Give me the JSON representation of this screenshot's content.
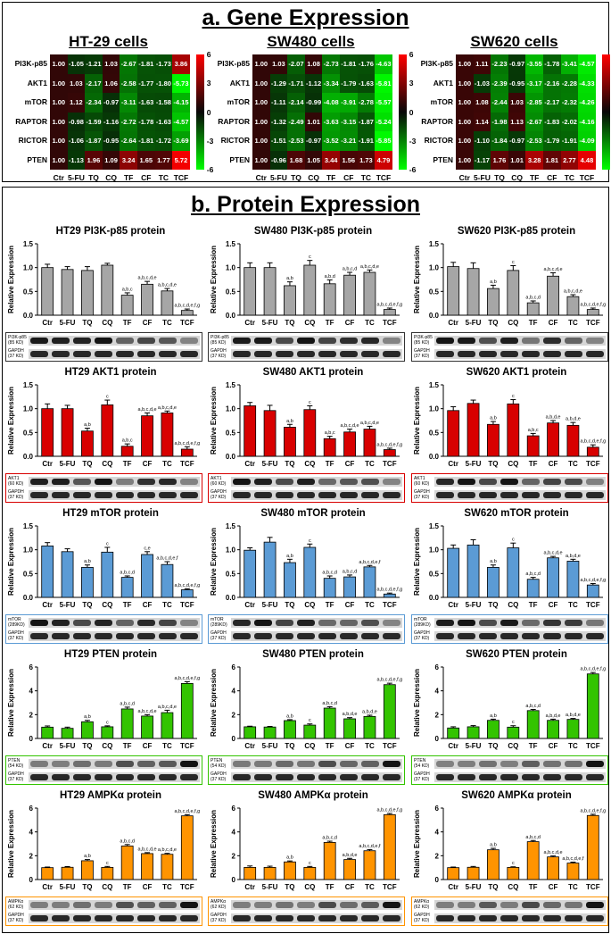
{
  "panel_a": {
    "title": "a. Gene Expression",
    "columns": [
      "Ctr",
      "5-FU",
      "TQ",
      "CQ",
      "TF",
      "CF",
      "TC",
      "TCF"
    ],
    "rows": [
      "PI3K-p85",
      "AKT1",
      "mTOR",
      "RAPTOR",
      "RICTOR",
      "PTEN"
    ],
    "heatmaps": [
      {
        "title": "HT-29 cells",
        "scale_ticks": [
          "6",
          "3",
          "0",
          "-3",
          "-6"
        ],
        "range": [
          -6,
          6
        ],
        "values": [
          [
            "1.00",
            "-1.05",
            "-1.21",
            "1.03",
            "-2.67",
            "-1.81",
            "-1.73",
            "3.86"
          ],
          [
            "1.00",
            "1.03",
            "-2.17",
            "1.06",
            "-2.58",
            "-1.77",
            "-1.80",
            "-5.73"
          ],
          [
            "1.00",
            "1.12",
            "-2.34",
            "-0.97",
            "-3.11",
            "-1.63",
            "-1.58",
            "-4.15"
          ],
          [
            "1.00",
            "-0.98",
            "-1.59",
            "-1.16",
            "-2.72",
            "-1.78",
            "-1.63",
            "-4.57"
          ],
          [
            "1.00",
            "-1.06",
            "-1.87",
            "-0.95",
            "-2.64",
            "-1.81",
            "-1.72",
            "-3.69"
          ],
          [
            "1.00",
            "-1.13",
            "1.96",
            "1.09",
            "3.24",
            "1.65",
            "1.77",
            "5.72"
          ]
        ]
      },
      {
        "title": "SW480 cells",
        "scale_ticks": [
          "6",
          "3",
          "0",
          "-3",
          "-6"
        ],
        "range": [
          -6,
          6
        ],
        "values": [
          [
            "1.00",
            "1.03",
            "-2.07",
            "1.08",
            "-2.73",
            "-1.81",
            "-1.76",
            "-4.63"
          ],
          [
            "1.00",
            "-1.29",
            "-1.71",
            "-1.12",
            "-3.34",
            "-1.79",
            "-1.63",
            "-5.81"
          ],
          [
            "1.00",
            "-1.11",
            "-2.14",
            "-0.99",
            "-4.08",
            "-3.91",
            "-2.78",
            "-5.57"
          ],
          [
            "1.00",
            "-1.32",
            "-2.49",
            "1.01",
            "-3.63",
            "-3.15",
            "-1.87",
            "-5.24"
          ],
          [
            "1.00",
            "-1.51",
            "-2.53",
            "-0.97",
            "-3.52",
            "-3.21",
            "-1.91",
            "-5.85"
          ],
          [
            "1.00",
            "-0.96",
            "1.68",
            "1.05",
            "3.44",
            "1.56",
            "1.73",
            "4.79"
          ]
        ]
      },
      {
        "title": "SW620 cells",
        "scale_ticks": [
          "5.0",
          "2.5",
          "0",
          "-2.5",
          "-5.0"
        ],
        "range": [
          -5,
          5
        ],
        "values": [
          [
            "1.00",
            "1.11",
            "-2.23",
            "-0.97",
            "-3.55",
            "-1.78",
            "-3.41",
            "-4.57"
          ],
          [
            "1.00",
            "-1.03",
            "-2.39",
            "-0.95",
            "-3.17",
            "-2.16",
            "-2.28",
            "-4.33"
          ],
          [
            "1.00",
            "1.08",
            "-2.44",
            "1.03",
            "-2.85",
            "-2.17",
            "-2.32",
            "-4.26"
          ],
          [
            "1.00",
            "1.14",
            "-1.98",
            "1.13",
            "-2.67",
            "-1.83",
            "-2.02",
            "-4.16"
          ],
          [
            "1.00",
            "-1.10",
            "-1.84",
            "-0.97",
            "-2.53",
            "-1.79",
            "-1.91",
            "-4.09"
          ],
          [
            "1.00",
            "-1.17",
            "1.76",
            "1.01",
            "3.28",
            "1.81",
            "2.77",
            "4.48"
          ]
        ]
      }
    ]
  },
  "panel_b": {
    "title": "b. Protein Expression",
    "ylabel": "Relative Expression",
    "categories": [
      "Ctr",
      "5-FU",
      "TQ",
      "CQ",
      "TF",
      "CF",
      "TC",
      "TCF"
    ],
    "gapdh_label": "GAPDH",
    "gapdh_kd": "(37 KD)"
  },
  "colors": {
    "gray": "#a6a6a6",
    "red": "#d80000",
    "blue": "#5b9bd5",
    "green": "#33c400",
    "orange": "#ff9400"
  },
  "chart_data": [
    {
      "type": "bar",
      "title": "HT29 PI3K-p85 protein",
      "ylabel": "Relative Expression",
      "ylim": [
        0,
        1.5
      ],
      "yticks": [
        "0.0",
        "0.5",
        "1.0",
        "1.5"
      ],
      "color": "gray",
      "blot": "PI3K-p85",
      "blot_kd": "(85 KD)",
      "categories": [
        "Ctr",
        "5-FU",
        "TQ",
        "CQ",
        "TF",
        "CF",
        "TC",
        "TCF"
      ],
      "values": [
        1.0,
        0.96,
        0.94,
        1.05,
        0.42,
        0.65,
        0.51,
        0.1
      ],
      "errors": [
        0.07,
        0.06,
        0.08,
        0.04,
        0.05,
        0.06,
        0.05,
        0.03
      ],
      "annotations": [
        "",
        "",
        "",
        "",
        "a,b,c",
        "a,b,c,d,e",
        "a,b,c,d,e",
        "a,b,c,d,e,f,g"
      ]
    },
    {
      "type": "bar",
      "title": "SW480 PI3K-p85 protein",
      "ylabel": "Relative Expression",
      "ylim": [
        0,
        1.5
      ],
      "yticks": [
        "0.0",
        "0.5",
        "1.0",
        "1.5"
      ],
      "color": "gray",
      "blot": "PI3K-p85",
      "blot_kd": "(85 KD)",
      "categories": [
        "Ctr",
        "5-FU",
        "TQ",
        "CQ",
        "TF",
        "CF",
        "TC",
        "TCF"
      ],
      "values": [
        1.0,
        1.0,
        0.62,
        1.05,
        0.66,
        0.84,
        0.9,
        0.12
      ],
      "errors": [
        0.1,
        0.1,
        0.08,
        0.1,
        0.08,
        0.06,
        0.05,
        0.03
      ],
      "annotations": [
        "",
        "",
        "a,b",
        "c",
        "a,b,d",
        "a,b,c,d",
        "a,b,c,d,e",
        "a,b,c,d,e,f,g"
      ]
    },
    {
      "type": "bar",
      "title": "SW620 PI3K-p85 protein",
      "ylabel": "Relative Expression",
      "ylim": [
        0,
        1.5
      ],
      "yticks": [
        "0.0",
        "0.5",
        "1.0",
        "1.5"
      ],
      "color": "gray",
      "blot": "PI3K-p85",
      "blot_kd": "(85 KD)",
      "categories": [
        "Ctr",
        "5-FU",
        "TQ",
        "CQ",
        "TF",
        "CF",
        "TC",
        "TCF"
      ],
      "values": [
        1.02,
        0.98,
        0.56,
        0.94,
        0.26,
        0.82,
        0.39,
        0.12
      ],
      "errors": [
        0.09,
        0.12,
        0.07,
        0.1,
        0.04,
        0.07,
        0.04,
        0.03
      ],
      "annotations": [
        "",
        "",
        "a,b",
        "c",
        "a,b,c,d",
        "a,b,c,d,e",
        "a,b,c,d,e",
        "a,b,c,d,e,f,g"
      ]
    },
    {
      "type": "bar",
      "title": "HT29 AKT1 protein",
      "ylabel": "Relative Expression",
      "ylim": [
        0,
        1.5
      ],
      "yticks": [
        "0.0",
        "0.5",
        "1.0",
        "1.5"
      ],
      "color": "red",
      "blot": "AKT1",
      "blot_kd": "(60 KD)",
      "categories": [
        "Ctr",
        "5-FU",
        "TQ",
        "CQ",
        "TF",
        "CF",
        "TC",
        "TCF"
      ],
      "values": [
        1.0,
        1.0,
        0.53,
        1.08,
        0.21,
        0.85,
        0.91,
        0.15
      ],
      "errors": [
        0.1,
        0.07,
        0.06,
        0.1,
        0.05,
        0.06,
        0.04,
        0.05
      ],
      "annotations": [
        "",
        "",
        "a,b",
        "c",
        "a,b,c",
        "a,b,c,d,e",
        "a,b,c,d,e",
        "a,b,c,d,e,f,g"
      ]
    },
    {
      "type": "bar",
      "title": "SW480 AKT1 protein",
      "ylabel": "Relative Expression",
      "ylim": [
        0,
        1.5
      ],
      "yticks": [
        "0.0",
        "0.5",
        "1.0",
        "1.5"
      ],
      "color": "red",
      "blot": "AKT1",
      "blot_kd": "(60 KD)",
      "categories": [
        "Ctr",
        "5-FU",
        "TQ",
        "CQ",
        "TF",
        "CF",
        "TC",
        "TCF"
      ],
      "values": [
        1.06,
        0.96,
        0.61,
        0.98,
        0.37,
        0.51,
        0.57,
        0.14
      ],
      "errors": [
        0.07,
        0.11,
        0.06,
        0.08,
        0.05,
        0.06,
        0.06,
        0.03
      ],
      "annotations": [
        "",
        "",
        "a,b",
        "c",
        "a,b,c",
        "a,b,c,d,e",
        "a,b,c,d,e",
        "a,b,c,d,e,f,g"
      ]
    },
    {
      "type": "bar",
      "title": "SW620 AKT1 protein",
      "ylabel": "Relative Expression",
      "ylim": [
        0,
        1.5
      ],
      "yticks": [
        "0.0",
        "0.5",
        "1.0",
        "1.5"
      ],
      "color": "red",
      "blot": "AKT1",
      "blot_kd": "(60 KD)",
      "categories": [
        "Ctr",
        "5-FU",
        "TQ",
        "CQ",
        "TF",
        "CF",
        "TC",
        "TCF"
      ],
      "values": [
        0.96,
        1.11,
        0.67,
        1.1,
        0.43,
        0.7,
        0.65,
        0.19
      ],
      "errors": [
        0.08,
        0.07,
        0.06,
        0.09,
        0.05,
        0.05,
        0.06,
        0.05
      ],
      "annotations": [
        "",
        "",
        "a,b",
        "c",
        "a,b,c",
        "a,b,d,e",
        "a,b,d,e",
        "a,b,c,d,e,f,g"
      ]
    },
    {
      "type": "bar",
      "title": "HT29 mTOR protein",
      "ylabel": "Relative Expression",
      "ylim": [
        0,
        1.5
      ],
      "yticks": [
        "0.0",
        "0.5",
        "1.0",
        "1.5"
      ],
      "color": "blue",
      "blot": "mTOR",
      "blot_kd": "(289KD)",
      "categories": [
        "Ctr",
        "5-FU",
        "TQ",
        "CQ",
        "TF",
        "CF",
        "TC",
        "TCF"
      ],
      "values": [
        1.08,
        0.96,
        0.63,
        0.95,
        0.42,
        0.9,
        0.69,
        0.16
      ],
      "errors": [
        0.07,
        0.06,
        0.05,
        0.1,
        0.03,
        0.06,
        0.06,
        0.02
      ],
      "annotations": [
        "",
        "",
        "a,b",
        "c",
        "a,b,c,d",
        "c,e",
        "a,b,c,d,e,f",
        "a,b,c,d,e,f,g"
      ]
    },
    {
      "type": "bar",
      "title": "SW480 mTOR protein",
      "ylabel": "Relative Expression",
      "ylim": [
        0,
        1.5
      ],
      "yticks": [
        "0.0",
        "0.5",
        "1.0",
        "1.5"
      ],
      "color": "blue",
      "blot": "mTOR",
      "blot_kd": "(289KD)",
      "categories": [
        "Ctr",
        "5-FU",
        "TQ",
        "CQ",
        "TF",
        "CF",
        "TC",
        "TCF"
      ],
      "values": [
        0.99,
        1.16,
        0.73,
        1.05,
        0.4,
        0.43,
        0.64,
        0.07
      ],
      "errors": [
        0.05,
        0.1,
        0.07,
        0.07,
        0.05,
        0.04,
        0.03,
        0.02
      ],
      "annotations": [
        "",
        "",
        "a,b",
        "c",
        "a,b,c,d",
        "a,b,c,d",
        "a,b,c,d,e,f",
        "a,b,c,d,e,f,g"
      ]
    },
    {
      "type": "bar",
      "title": "SW620 mTOR protein",
      "ylabel": "Relative Expression",
      "ylim": [
        0,
        1.5
      ],
      "yticks": [
        "0.0",
        "0.5",
        "1.0",
        "1.5"
      ],
      "color": "blue",
      "blot": "mTOR",
      "blot_kd": "(289KD)",
      "categories": [
        "Ctr",
        "5-FU",
        "TQ",
        "CQ",
        "TF",
        "CF",
        "TC",
        "TCF"
      ],
      "values": [
        1.03,
        1.1,
        0.63,
        1.04,
        0.38,
        0.83,
        0.76,
        0.26
      ],
      "errors": [
        0.07,
        0.11,
        0.05,
        0.1,
        0.04,
        0.03,
        0.04,
        0.03
      ],
      "annotations": [
        "",
        "",
        "a,b",
        "c",
        "a,b,c,d",
        "a,b,c,d,e",
        "a,b,d,e",
        "a,b,c,d,e,f,g"
      ]
    },
    {
      "type": "bar",
      "title": "HT29 PTEN protein",
      "ylabel": "Relative Expression",
      "ylim": [
        0,
        6
      ],
      "yticks": [
        "0",
        "2",
        "4",
        "6"
      ],
      "color": "green",
      "blot": "PTEN",
      "blot_kd": "(54 KD)",
      "categories": [
        "Ctr",
        "5-FU",
        "TQ",
        "CQ",
        "TF",
        "CF",
        "TC",
        "TCF"
      ],
      "values": [
        0.95,
        0.85,
        1.4,
        0.98,
        2.48,
        1.88,
        2.17,
        4.62
      ],
      "errors": [
        0.1,
        0.1,
        0.12,
        0.08,
        0.15,
        0.12,
        0.2,
        0.15
      ],
      "annotations": [
        "",
        "",
        "a,b",
        "c",
        "a,b,c,d",
        "a,b,c,d,e",
        "a,b,c,d,e",
        "a,b,c,d,e,f,g"
      ]
    },
    {
      "type": "bar",
      "title": "SW480 PTEN protein",
      "ylabel": "Relative Expression",
      "ylim": [
        0,
        6
      ],
      "yticks": [
        "0",
        "2",
        "4",
        "6"
      ],
      "color": "green",
      "blot": "PTEN",
      "blot_kd": "(54 KD)",
      "categories": [
        "Ctr",
        "5-FU",
        "TQ",
        "CQ",
        "TF",
        "CF",
        "TC",
        "TCF"
      ],
      "values": [
        0.98,
        0.96,
        1.5,
        1.12,
        2.55,
        1.65,
        1.85,
        4.52
      ],
      "errors": [
        0.05,
        0.05,
        0.08,
        0.1,
        0.12,
        0.1,
        0.1,
        0.12
      ],
      "annotations": [
        "",
        "",
        "a,b",
        "c",
        "a,b,c,d",
        "a,b,d,e",
        "a,b,d,e",
        "a,b,c,d,e,f,g"
      ]
    },
    {
      "type": "bar",
      "title": "SW620 PTEN protein",
      "ylabel": "Relative Expression",
      "ylim": [
        0,
        6
      ],
      "yticks": [
        "0",
        "2",
        "4",
        "6"
      ],
      "color": "green",
      "blot": "PTEN",
      "blot_kd": "(54 KD)",
      "categories": [
        "Ctr",
        "5-FU",
        "TQ",
        "CQ",
        "TF",
        "CF",
        "TC",
        "TCF"
      ],
      "values": [
        0.88,
        0.98,
        1.52,
        0.95,
        2.34,
        1.52,
        1.6,
        5.42
      ],
      "errors": [
        0.1,
        0.1,
        0.1,
        0.12,
        0.1,
        0.1,
        0.08,
        0.12
      ],
      "annotations": [
        "",
        "",
        "a,b",
        "c",
        "a,b,c,d",
        "a,b,d,e",
        "a,b,d,e",
        "a,b,c,d,e,f,g"
      ]
    },
    {
      "type": "bar",
      "title": "HT29 AMPKα protein",
      "ylabel": "Relative Expression",
      "ylim": [
        0,
        6
      ],
      "yticks": [
        "0",
        "2",
        "4",
        "6"
      ],
      "color": "orange",
      "blot": "AMPKα",
      "blot_kd": "(62 KD)",
      "categories": [
        "Ctr",
        "5-FU",
        "TQ",
        "CQ",
        "TF",
        "CF",
        "TC",
        "TCF"
      ],
      "values": [
        1.0,
        1.03,
        1.58,
        1.02,
        2.82,
        2.18,
        2.12,
        5.35
      ],
      "errors": [
        0.05,
        0.06,
        0.1,
        0.08,
        0.12,
        0.08,
        0.08,
        0.1
      ],
      "annotations": [
        "",
        "",
        "a,b",
        "c",
        "a,b,c,d",
        "a,b,c,d,e",
        "a,b,c,d,e",
        "a,b,c,d,e,f,g"
      ]
    },
    {
      "type": "bar",
      "title": "SW480 AMPKα protein",
      "ylabel": "Relative Expression",
      "ylim": [
        0,
        6
      ],
      "yticks": [
        "0",
        "2",
        "4",
        "6"
      ],
      "color": "orange",
      "blot": "AMPKα",
      "blot_kd": "(62 KD)",
      "categories": [
        "Ctr",
        "5-FU",
        "TQ",
        "CQ",
        "TF",
        "CF",
        "TC",
        "TCF"
      ],
      "values": [
        1.02,
        1.02,
        1.48,
        1.02,
        3.12,
        1.68,
        2.42,
        5.45
      ],
      "errors": [
        0.12,
        0.1,
        0.08,
        0.08,
        0.1,
        0.1,
        0.1,
        0.1
      ],
      "annotations": [
        "",
        "",
        "a,b",
        "c",
        "a,b,c,d",
        "a,b,d,e",
        "a,b,c,d,e,f",
        "a,b,c,d,e,f,g"
      ]
    },
    {
      "type": "bar",
      "title": "SW620 AMPKα protein",
      "ylabel": "Relative Expression",
      "ylim": [
        0,
        6
      ],
      "yticks": [
        "0",
        "2",
        "4",
        "6"
      ],
      "color": "orange",
      "blot": "AMPKα",
      "blot_kd": "(62 KD)",
      "categories": [
        "Ctr",
        "5-FU",
        "TQ",
        "CQ",
        "TF",
        "CF",
        "TC",
        "TCF"
      ],
      "values": [
        1.0,
        1.03,
        2.5,
        1.02,
        3.18,
        1.9,
        1.38,
        5.38
      ],
      "errors": [
        0.05,
        0.07,
        0.12,
        0.05,
        0.1,
        0.08,
        0.08,
        0.1
      ],
      "annotations": [
        "",
        "",
        "a,b",
        "c",
        "a,b,c,d",
        "a,b,c,d,e",
        "a,b,c,d,e,f",
        "a,b,c,d,e,f,g"
      ]
    }
  ]
}
